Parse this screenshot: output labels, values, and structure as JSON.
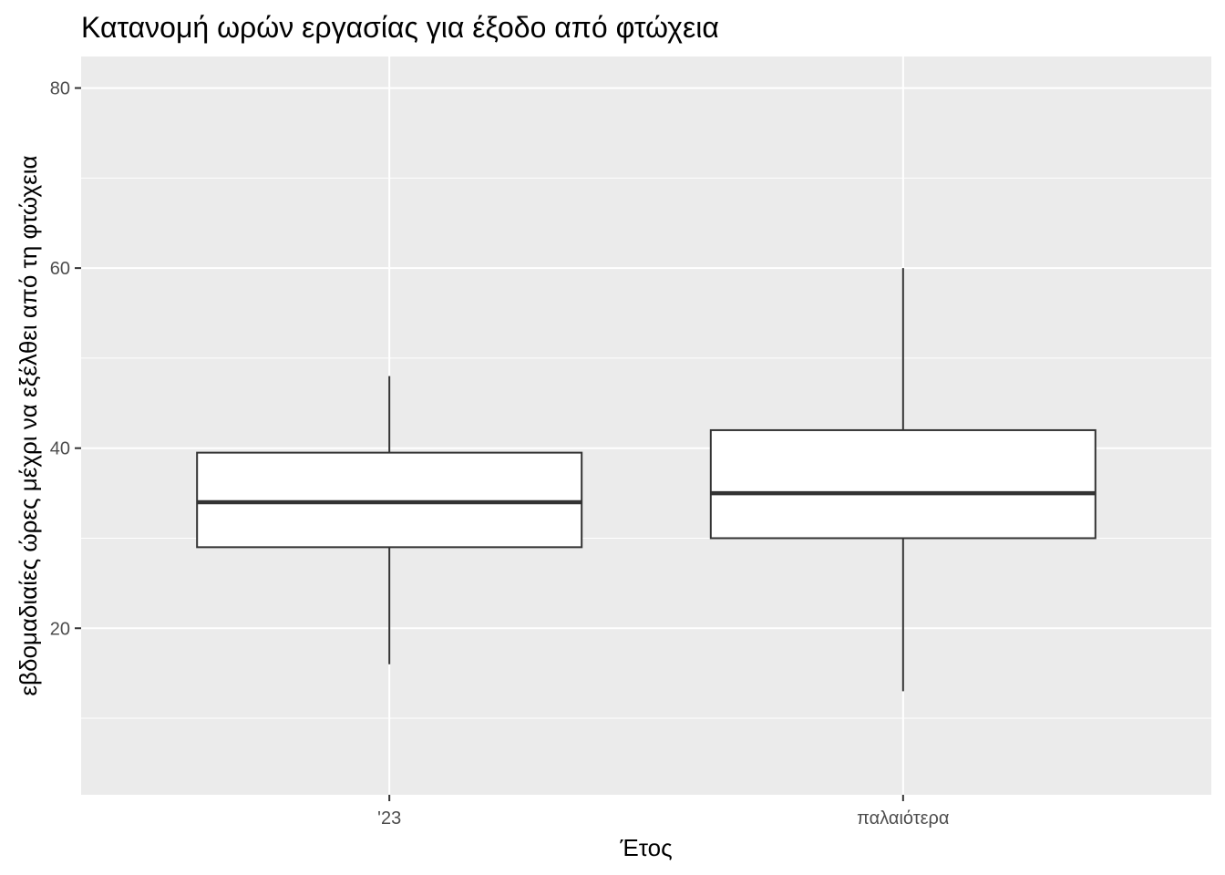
{
  "chart_data": {
    "type": "boxplot",
    "title": "Κατανομή ωρών εργασίας για έξοδο από φτώχεια",
    "xlabel": "Έτος",
    "ylabel": "εβδομαδιαίες ώρες μέχρι να εξέλθει από τη φτώχεια",
    "categories": [
      "'23",
      "παλαιότερα"
    ],
    "boxes": [
      {
        "category": "'23",
        "whisker_low": 16,
        "q1": 29,
        "median": 34,
        "q3": 39.5,
        "whisker_high": 48
      },
      {
        "category": "παλαιότερα",
        "whisker_low": 13,
        "q1": 30,
        "median": 35,
        "q3": 42,
        "whisker_high": 60
      }
    ],
    "ylim": [
      1.5,
      83.5
    ],
    "y_ticks": [
      20,
      40,
      60,
      80
    ],
    "y_minor_ticks": [
      10,
      30,
      50,
      70
    ],
    "grid": true,
    "background": "#ebebeb",
    "grid_color": "#ffffff",
    "box_fill": "#ffffff",
    "box_stroke": "#333333"
  }
}
